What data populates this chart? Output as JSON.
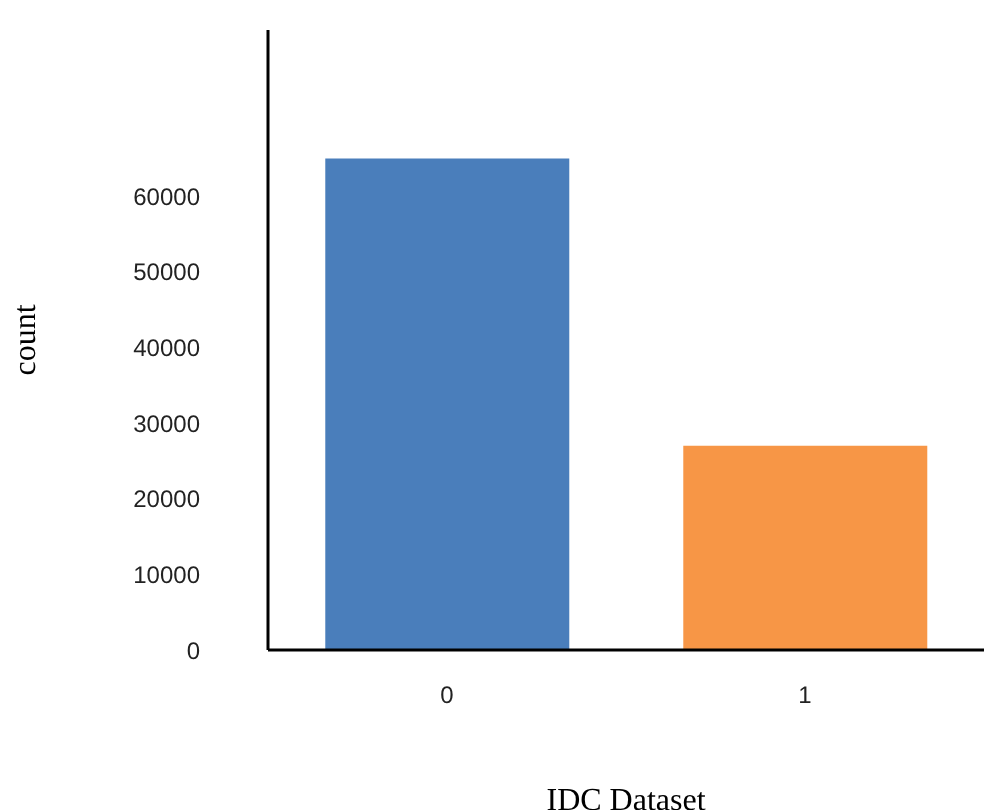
{
  "chart_data": {
    "type": "bar",
    "xlabel": "IDC Dataset",
    "ylabel": "count",
    "categories": [
      "0",
      "1"
    ],
    "values": [
      65000,
      27000
    ],
    "colors": [
      "#4a7ebb",
      "#f79646"
    ],
    "ylim": [
      0,
      82000
    ],
    "yticks": [
      0,
      10000,
      20000,
      30000,
      40000,
      50000,
      60000
    ],
    "grid": false
  }
}
